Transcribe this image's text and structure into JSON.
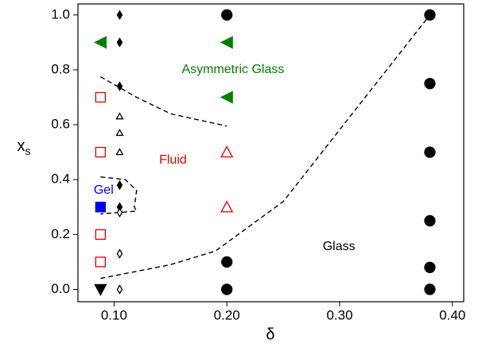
{
  "chart_data": {
    "type": "scatter",
    "xlabel": "δ",
    "ylabel": "x",
    "ylabel_subscript": "s",
    "xlim": [
      0.068,
      0.41
    ],
    "ylim": [
      -0.045,
      1.04
    ],
    "xticks": [
      {
        "value": 0.1,
        "label": "0.10"
      },
      {
        "value": 0.2,
        "label": "0.20"
      },
      {
        "value": 0.3,
        "label": "0.30"
      },
      {
        "value": 0.4,
        "label": "0.40"
      }
    ],
    "yticks": [
      {
        "value": 0,
        "label": "0.0"
      },
      {
        "value": 0.2,
        "label": "0.2"
      },
      {
        "value": 0.4,
        "label": "0.4"
      },
      {
        "value": 0.6,
        "label": "0.6"
      },
      {
        "value": 0.8,
        "label": "0.8"
      },
      {
        "value": 1,
        "label": "1.0"
      }
    ],
    "series": [
      {
        "marker": "circle",
        "color": "#000000",
        "filled": true,
        "x": [
          0.2,
          0.2,
          0.2,
          0.38,
          0.38,
          0.38,
          0.38,
          0.38,
          0.38
        ],
        "values": [
          1.0,
          0.1,
          0.0,
          1.0,
          0.75,
          0.5,
          0.25,
          0.08,
          0.0
        ]
      },
      {
        "marker": "triangle-left",
        "color": "#008000",
        "filled": true,
        "x": [
          0.088,
          0.2,
          0.2
        ],
        "values": [
          0.9,
          0.9,
          0.7
        ]
      },
      {
        "marker": "square",
        "color": "#e00000",
        "filled": false,
        "x": [
          0.088,
          0.088,
          0.088,
          0.088
        ],
        "values": [
          0.7,
          0.5,
          0.2,
          0.1
        ]
      },
      {
        "marker": "triangle-up",
        "color": "#e00000",
        "filled": false,
        "x": [
          0.2,
          0.2
        ],
        "values": [
          0.5,
          0.3
        ]
      },
      {
        "marker": "square",
        "color": "#0000ee",
        "filled": true,
        "x": [
          0.088
        ],
        "values": [
          0.3
        ]
      },
      {
        "marker": "diamond",
        "color": "#000000",
        "filled": true,
        "x": [
          0.105,
          0.105,
          0.105,
          0.105,
          0.105
        ],
        "values": [
          1.0,
          0.9,
          0.74,
          0.38,
          0.3
        ]
      },
      {
        "marker": "diamond",
        "color": "#000000",
        "filled": false,
        "x": [
          0.105,
          0.105,
          0.105
        ],
        "values": [
          0.28,
          0.13,
          0.0
        ]
      },
      {
        "marker": "small-triangle-up",
        "color": "#000000",
        "filled": false,
        "x": [
          0.105,
          0.105,
          0.105
        ],
        "values": [
          0.63,
          0.57,
          0.5
        ]
      },
      {
        "marker": "triangle-down",
        "color": "#000000",
        "filled": true,
        "x": [
          0.088
        ],
        "values": [
          0.0
        ]
      }
    ],
    "lines": [
      {
        "color": "#000000",
        "x": [
          0.088,
          0.12,
          0.15,
          0.2
        ],
        "values": [
          0.775,
          0.7,
          0.64,
          0.595
        ]
      },
      {
        "color": "#000000",
        "x": [
          0.088,
          0.11,
          0.12,
          0.118,
          0.12,
          0.088
        ],
        "values": [
          0.41,
          0.4,
          0.36,
          0.3,
          0.285,
          0.275
        ]
      },
      {
        "color": "#000000",
        "x": [
          0.088,
          0.15,
          0.19,
          0.25,
          0.38
        ],
        "values": [
          0.04,
          0.09,
          0.14,
          0.32,
          1.0
        ]
      }
    ],
    "annotations": [
      {
        "text": "Asymmetric Glass",
        "color": "#008000",
        "x": 0.16,
        "y": 0.8
      },
      {
        "text": "Fluid",
        "color": "#e00000",
        "x": 0.14,
        "y": 0.47
      },
      {
        "text": "Gel",
        "color": "#0000ee",
        "x": 0.082,
        "y": 0.36
      },
      {
        "text": "Glass",
        "color": "#000000",
        "x": 0.285,
        "y": 0.155
      }
    ]
  }
}
